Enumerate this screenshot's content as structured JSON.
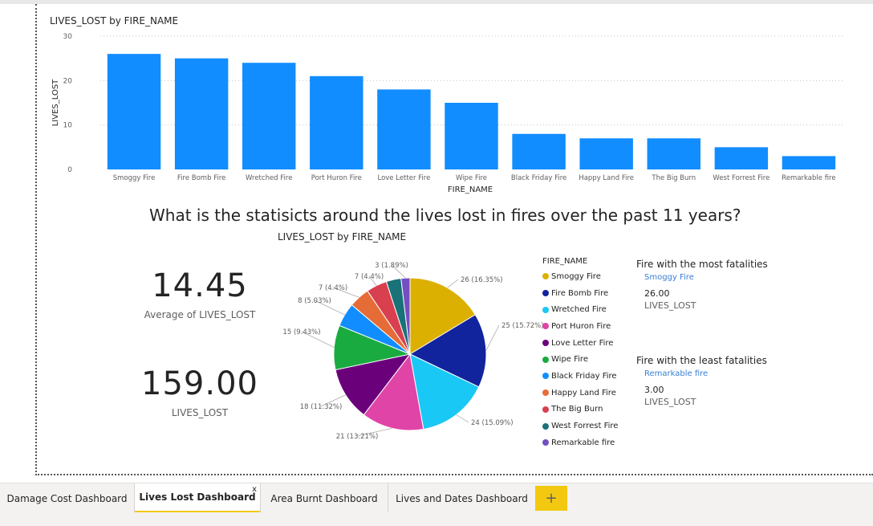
{
  "bar_chart": {
    "title": "LIVES_LOST by FIRE_NAME",
    "xlabel": "FIRE_NAME",
    "ylabel": "LIVES_LOST",
    "yticks": [
      0,
      10,
      20,
      30
    ]
  },
  "question": "What is the statisicts around the lives lost in fires over the past 11 years?",
  "pie_chart": {
    "title": "LIVES_LOST by FIRE_NAME",
    "legend_title": "FIRE_NAME"
  },
  "cards": {
    "average_value": "14.45",
    "average_label": "Average of LIVES_LOST",
    "total_value": "159.00",
    "total_label": "LIVES_LOST"
  },
  "most_fatal": {
    "title": "Fire with the most fatalities",
    "name": "Smoggy Fire",
    "value": "26.00",
    "label": "LIVES_LOST"
  },
  "least_fatal": {
    "title": "Fire with the least fatalities",
    "name": "Remarkable fire",
    "value": "3.00",
    "label": "LIVES_LOST"
  },
  "tabs": [
    {
      "label": "Damage Cost Dashboard"
    },
    {
      "label": "Lives Lost Dashboard",
      "close": "x"
    },
    {
      "label": "Area Burnt Dashboard"
    },
    {
      "label": "Lives and Dates Dashboard"
    }
  ],
  "add_tab": "+",
  "colors": {
    "bar": "#118dff",
    "pie": [
      "#dcb000",
      "#12239e",
      "#19c8f5",
      "#e044a7",
      "#6b007b",
      "#1aab40",
      "#118dff",
      "#e66c37",
      "#d9404f",
      "#197278",
      "#744ec2"
    ]
  },
  "chart_data": [
    {
      "type": "bar",
      "title": "LIVES_LOST by FIRE_NAME",
      "xlabel": "FIRE_NAME",
      "ylabel": "LIVES_LOST",
      "ylim": [
        0,
        30
      ],
      "categories": [
        "Smoggy Fire",
        "Fire Bomb Fire",
        "Wretched Fire",
        "Port Huron Fire",
        "Love Letter Fire",
        "Wipe Fire",
        "Black Friday Fire",
        "Happy Land Fire",
        "The Big Burn",
        "West Forrest Fire",
        "Remarkable fire"
      ],
      "values": [
        26,
        25,
        24,
        21,
        18,
        15,
        8,
        7,
        7,
        5,
        3
      ],
      "grid": true
    },
    {
      "type": "pie",
      "title": "LIVES_LOST by FIRE_NAME",
      "legend_title": "FIRE_NAME",
      "categories": [
        "Smoggy Fire",
        "Fire Bomb Fire",
        "Wretched Fire",
        "Port Huron Fire",
        "Love Letter Fire",
        "Wipe Fire",
        "Black Friday Fire",
        "Happy Land Fire",
        "The Big Burn",
        "West Forrest Fire",
        "Remarkable fire"
      ],
      "values": [
        26,
        25,
        24,
        21,
        18,
        15,
        8,
        7,
        7,
        5,
        3
      ],
      "labels": [
        "26 (16.35%)",
        "25 (15.72%)",
        "24 (15.09%)",
        "21 (13.21%)",
        "18 (11.32%)",
        "15 (9.43%)",
        "8 (5.03%)",
        "7 (4.4%)",
        "7 (4.4%)",
        "",
        "3 (1.89%)"
      ],
      "legend": "right"
    }
  ]
}
